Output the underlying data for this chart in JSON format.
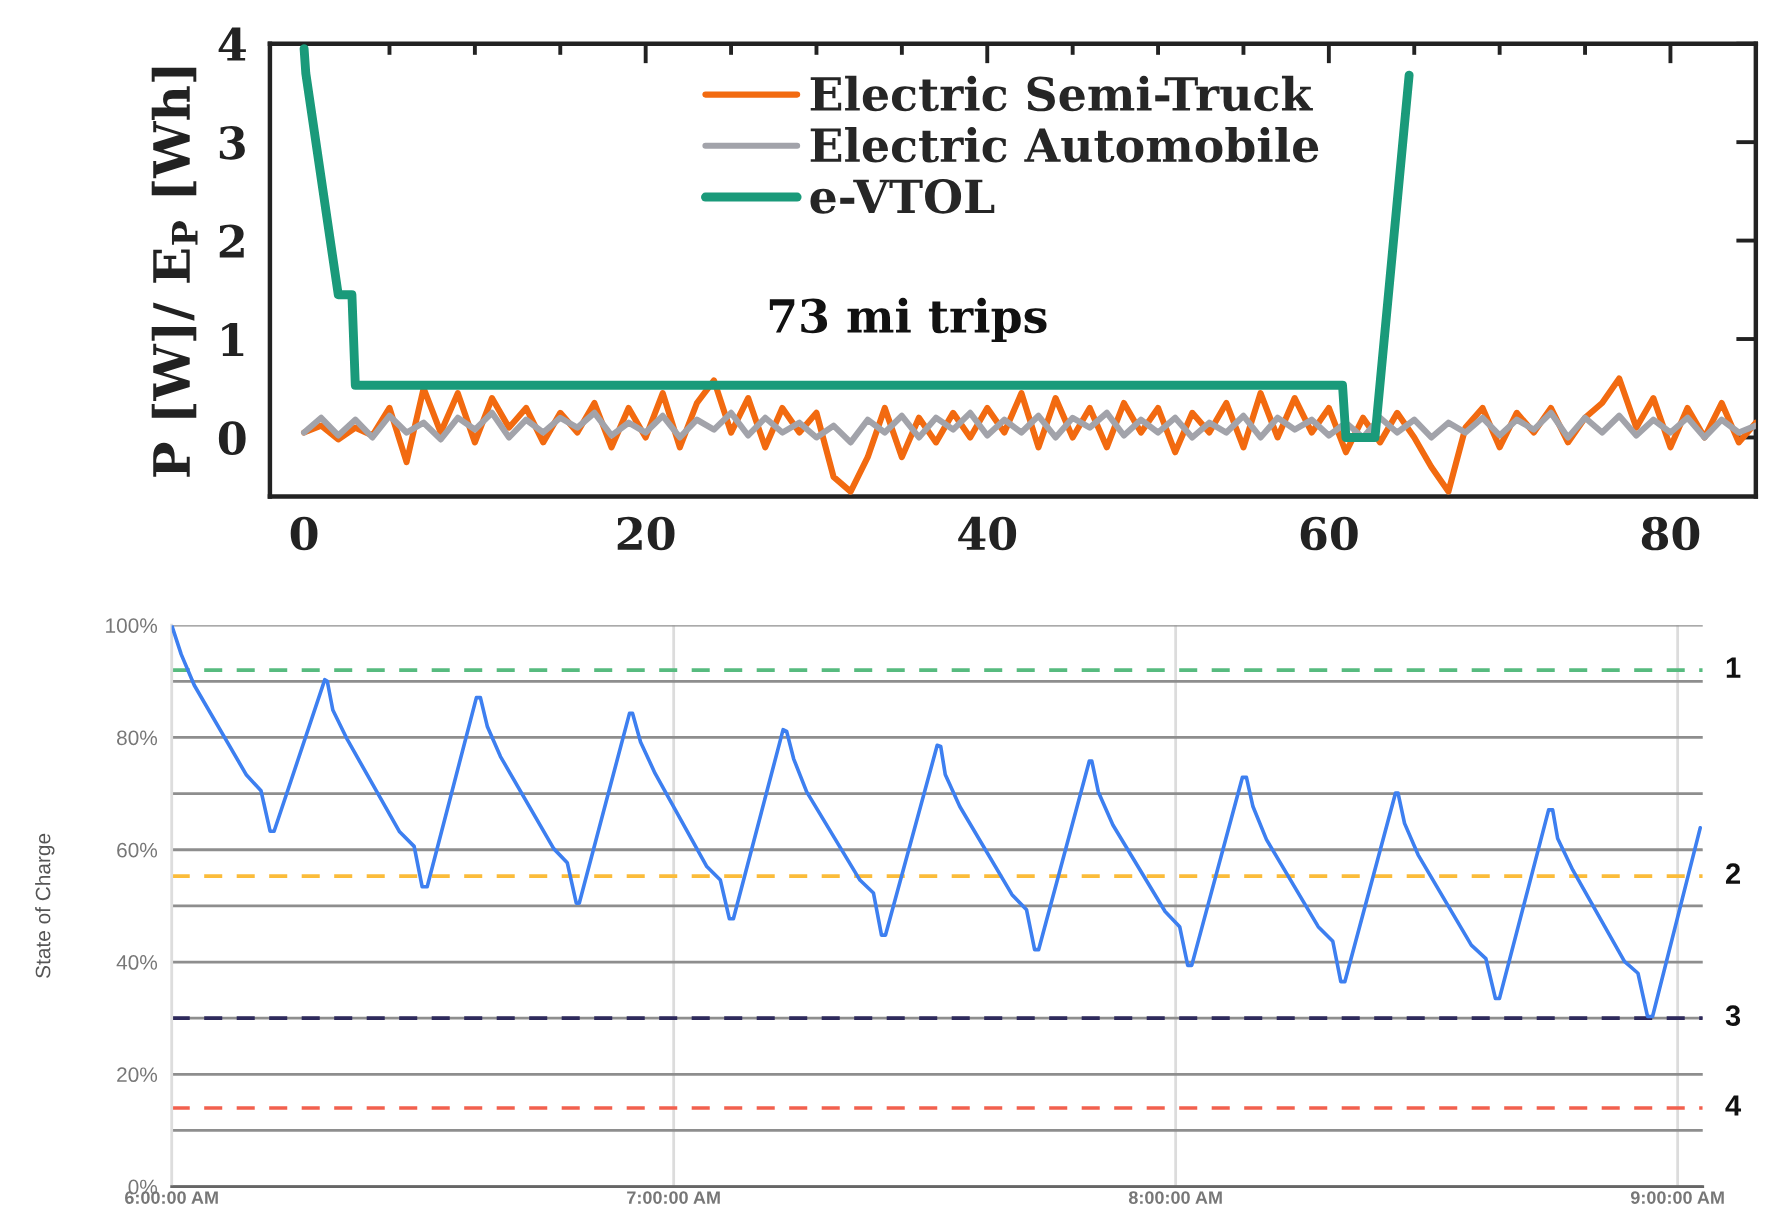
{
  "chart_data": [
    {
      "type": "line",
      "ylabel": "P [W]/ E$_{P}$ [Wh]",
      "annotations": [
        "73 mi trips"
      ],
      "xlim": [
        -2,
        85
      ],
      "ylim": [
        -0.6,
        4
      ],
      "xticks": [
        0,
        {
          "value": 5,
          "label": null
        },
        {
          "value": 10,
          "label": null
        },
        {
          "value": 15,
          "label": null
        },
        20,
        {
          "value": 25,
          "label": null
        },
        {
          "value": 30,
          "label": null
        },
        {
          "value": 35,
          "label": null
        },
        40,
        {
          "value": 45,
          "label": null
        },
        {
          "value": 50,
          "label": null
        },
        {
          "value": 55,
          "label": null
        },
        60,
        {
          "value": 65,
          "label": null
        },
        {
          "value": 70,
          "label": null
        },
        {
          "value": 75,
          "label": null
        },
        80
      ],
      "yticks": [
        0,
        1,
        2,
        3,
        4
      ],
      "legend": "top",
      "series": [
        {
          "name": "Electric Semi-Truck",
          "color": "#f26a10",
          "x": [
            0,
            1,
            2,
            3,
            4,
            5,
            6,
            7,
            8,
            9,
            10,
            11,
            12,
            13,
            14,
            15,
            16,
            17,
            18,
            19,
            20,
            21,
            22,
            23,
            24,
            25,
            26,
            27,
            28,
            29,
            30,
            31,
            32,
            33,
            34,
            35,
            36,
            37,
            38,
            39,
            40,
            41,
            42,
            43,
            44,
            45,
            46,
            47,
            48,
            49,
            50,
            51,
            52,
            53,
            54,
            55,
            56,
            57,
            58,
            59,
            60,
            61,
            62,
            63,
            64,
            65,
            66,
            67,
            68,
            69,
            70,
            71,
            72,
            73,
            74,
            75,
            76,
            77,
            78,
            79,
            80,
            81,
            82,
            83,
            84,
            85
          ],
          "values": [
            0.05,
            0.12,
            -0.02,
            0.1,
            0.02,
            0.3,
            -0.25,
            0.5,
            0.05,
            0.45,
            -0.05,
            0.4,
            0.1,
            0.3,
            -0.05,
            0.25,
            0.05,
            0.35,
            -0.1,
            0.3,
            0.0,
            0.45,
            -0.1,
            0.35,
            0.58,
            0.05,
            0.4,
            -0.1,
            0.3,
            0.05,
            0.25,
            -0.4,
            -0.55,
            -0.2,
            0.3,
            -0.2,
            0.2,
            -0.05,
            0.25,
            0.0,
            0.3,
            0.05,
            0.45,
            -0.1,
            0.4,
            0.0,
            0.3,
            -0.1,
            0.35,
            0.05,
            0.3,
            -0.15,
            0.25,
            0.05,
            0.35,
            -0.1,
            0.45,
            0.0,
            0.4,
            0.05,
            0.3,
            -0.15,
            0.2,
            -0.05,
            0.25,
            0.0,
            -0.3,
            -0.55,
            0.1,
            0.3,
            -0.1,
            0.25,
            0.05,
            0.3,
            -0.05,
            0.2,
            0.35,
            0.6,
            0.1,
            0.4,
            -0.1,
            0.3,
            0.0,
            0.35,
            -0.05,
            0.15
          ]
        },
        {
          "name": "Electric Automobile",
          "color": "#a2a3aa",
          "x": [
            0,
            1,
            2,
            3,
            4,
            5,
            6,
            7,
            8,
            9,
            10,
            11,
            12,
            13,
            14,
            15,
            16,
            17,
            18,
            19,
            20,
            21,
            22,
            23,
            24,
            25,
            26,
            27,
            28,
            29,
            30,
            31,
            32,
            33,
            34,
            35,
            36,
            37,
            38,
            39,
            40,
            41,
            42,
            43,
            44,
            45,
            46,
            47,
            48,
            49,
            50,
            51,
            52,
            53,
            54,
            55,
            56,
            57,
            58,
            59,
            60,
            61,
            62,
            63,
            64,
            65,
            66,
            67,
            68,
            69,
            70,
            71,
            72,
            73,
            74,
            75,
            76,
            77,
            78,
            79,
            80,
            81,
            82,
            83,
            84,
            85
          ],
          "values": [
            0.05,
            0.2,
            0.02,
            0.18,
            0.0,
            0.22,
            0.05,
            0.15,
            -0.02,
            0.2,
            0.08,
            0.25,
            0.0,
            0.18,
            0.05,
            0.2,
            0.1,
            0.25,
            0.02,
            0.15,
            0.05,
            0.22,
            0.0,
            0.18,
            0.08,
            0.25,
            0.02,
            0.2,
            0.05,
            0.15,
            0.0,
            0.12,
            -0.05,
            0.18,
            0.05,
            0.22,
            0.0,
            0.2,
            0.08,
            0.25,
            0.02,
            0.18,
            0.05,
            0.22,
            0.0,
            0.2,
            0.1,
            0.25,
            0.02,
            0.18,
            0.05,
            0.2,
            0.0,
            0.15,
            0.05,
            0.22,
            0.0,
            0.2,
            0.08,
            0.18,
            0.02,
            0.15,
            0.0,
            0.2,
            0.05,
            0.18,
            0.0,
            0.15,
            0.05,
            0.2,
            0.02,
            0.18,
            0.08,
            0.25,
            0.0,
            0.2,
            0.05,
            0.22,
            0.02,
            0.18,
            0.05,
            0.2,
            0.0,
            0.18,
            0.05,
            0.12
          ]
        },
        {
          "name": "e-VTOL",
          "color": "#1a9a7a",
          "x": [
            0,
            0.1,
            2.0,
            2.8,
            3.0,
            60.8,
            61.0,
            62.7,
            64.7
          ],
          "values": [
            3.95,
            3.7,
            1.45,
            1.45,
            0.53,
            0.53,
            0.0,
            0.0,
            3.68
          ]
        }
      ]
    },
    {
      "type": "line",
      "ylabel": "State of Charge",
      "xlim": [
        6,
        9.05
      ],
      "xticks": [
        {
          "value": 6,
          "label": "6:00:00 AM"
        },
        {
          "value": 7,
          "label": "7:00:00 AM"
        },
        {
          "value": 8,
          "label": "8:00:00 AM"
        },
        {
          "value": 9,
          "label": "9:00:00 AM"
        }
      ],
      "ylim": [
        0,
        100
      ],
      "yticks": [
        {
          "value": 0,
          "label": "0%"
        },
        {
          "value": 10,
          "label": null
        },
        {
          "value": 20,
          "label": "20%"
        },
        {
          "value": 30,
          "label": null
        },
        {
          "value": 40,
          "label": "40%"
        },
        {
          "value": 50,
          "label": null
        },
        {
          "value": 60,
          "label": "60%"
        },
        {
          "value": 70,
          "label": null
        },
        {
          "value": 80,
          "label": "80%"
        },
        {
          "value": 90,
          "label": null
        },
        {
          "value": 100,
          "label": "100%"
        }
      ],
      "grid": true,
      "ref_lines": [
        {
          "axis": "y",
          "value": 92,
          "color": "#57bb7f",
          "line_style": "dashed"
        },
        {
          "axis": "y",
          "value": 55.3,
          "color": "#fbbc3a",
          "line_style": "dashed"
        },
        {
          "axis": "y",
          "value": 30,
          "color": "#2e2a5c",
          "line_style": "dashed"
        },
        {
          "axis": "y",
          "value": 14,
          "color": "#f2604e",
          "line_style": "dashed"
        }
      ],
      "annotations": [
        "1",
        "2",
        "3",
        "4"
      ],
      "series": [
        {
          "color": "#3d7ff0",
          "x": [
            6.0,
            6.019,
            6.045,
            6.149,
            6.178,
            6.196,
            6.204,
            6.305,
            6.31,
            6.321,
            6.35,
            6.454,
            6.483,
            6.499,
            6.509,
            6.607,
            6.615,
            6.629,
            6.655,
            6.761,
            6.788,
            6.806,
            6.812,
            6.912,
            6.918,
            6.934,
            6.963,
            7.066,
            7.093,
            7.111,
            7.119,
            7.218,
            7.225,
            7.239,
            7.265,
            7.371,
            7.398,
            7.414,
            7.422,
            7.525,
            7.532,
            7.541,
            7.57,
            7.674,
            7.703,
            7.719,
            7.727,
            7.828,
            7.833,
            7.846,
            7.875,
            7.979,
            8.008,
            8.024,
            8.032,
            8.133,
            8.141,
            8.154,
            8.181,
            8.284,
            8.313,
            8.329,
            8.337,
            8.438,
            8.443,
            8.456,
            8.483,
            8.589,
            8.618,
            8.637,
            8.645,
            8.743,
            8.751,
            8.761,
            8.791,
            8.894,
            8.921,
            8.94,
            8.95,
            9.045
          ],
          "values": [
            100,
            94.8,
            89.3,
            73.3,
            70.5,
            63.3,
            63.3,
            90.3,
            90,
            84.9,
            79.6,
            63.2,
            60.6,
            53.4,
            53.4,
            87.1,
            87.1,
            81.9,
            76.6,
            60.2,
            57.7,
            50.5,
            50.5,
            84.3,
            84.3,
            79.2,
            73.6,
            57,
            54.6,
            47.7,
            47.7,
            81.4,
            81.1,
            76.2,
            70.3,
            54.6,
            52.3,
            44.8,
            44.8,
            78.6,
            78.4,
            73.4,
            67.7,
            52,
            49.3,
            42.2,
            42.2,
            75.8,
            75.8,
            70.3,
            64.4,
            49,
            46.3,
            39.4,
            39.4,
            72.9,
            72.9,
            67.7,
            61.8,
            46.3,
            43.7,
            36.5,
            36.5,
            70.1,
            70.1,
            64.7,
            59.1,
            43,
            40.6,
            33.5,
            33.5,
            67.1,
            67.1,
            62,
            56.4,
            40.1,
            38,
            30.3,
            30.3,
            63.9
          ]
        }
      ]
    }
  ]
}
